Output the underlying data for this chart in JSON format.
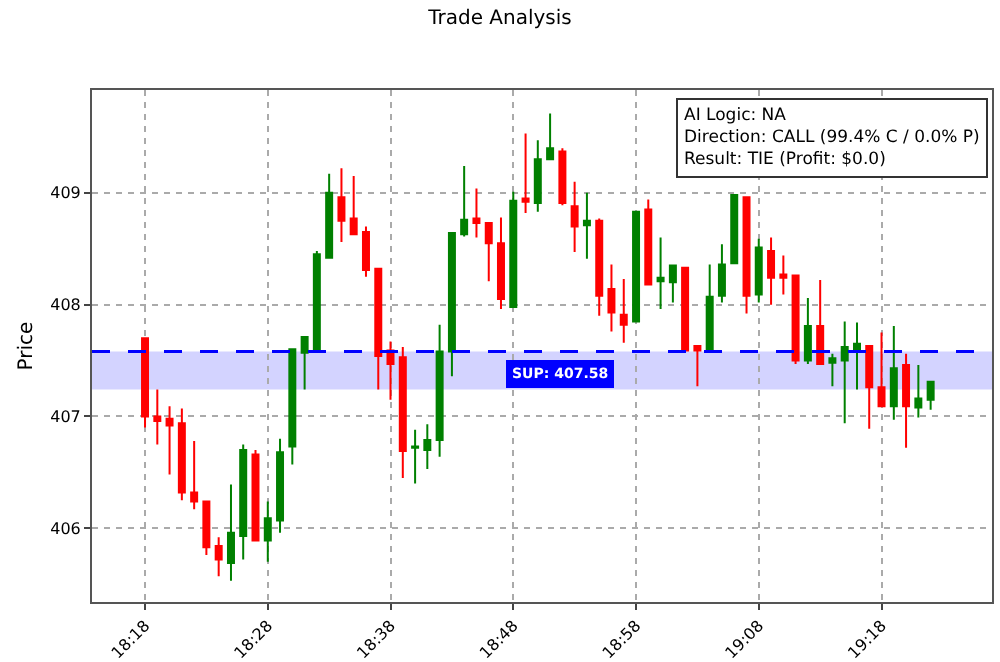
{
  "chart_data": {
    "type": "candlestick",
    "title": "Trade Analysis",
    "ylabel": "Price",
    "xlim": [
      18.228,
      19.45
    ],
    "xticks": [
      {
        "value": 18.3,
        "label": "18:18"
      },
      {
        "value": 18.4667,
        "label": "18:28"
      },
      {
        "value": 18.6333,
        "label": "18:38"
      },
      {
        "value": 18.8,
        "label": "18:48"
      },
      {
        "value": 18.9667,
        "label": "18:58"
      },
      {
        "value": 19.1333,
        "label": "19:08"
      },
      {
        "value": 19.3,
        "label": "19:18"
      }
    ],
    "ylim": [
      405.34,
      409.92
    ],
    "yticks": [
      406,
      407,
      408,
      409
    ],
    "grid": true,
    "series": [
      {
        "color": "#008000",
        "x": [
          18.4167,
          18.4333,
          18.4667,
          18.4833,
          18.5,
          18.5167,
          18.5333,
          18.55,
          18.6667,
          18.6833,
          18.7,
          18.7167,
          18.7333,
          18.8,
          18.8333,
          18.85,
          18.9,
          18.9667,
          19.0,
          19.0167,
          19.0667,
          19.0833,
          19.1,
          19.1333,
          19.2,
          19.2333,
          19.25,
          19.2667,
          19.3167,
          19.35,
          19.3667
        ],
        "ohlc": [
          [
            405.69,
            406.39,
            405.53,
            405.96
          ],
          [
            405.93,
            406.75,
            405.72,
            406.7
          ],
          [
            405.89,
            406.24,
            405.7,
            406.09
          ],
          [
            406.07,
            406.8,
            405.96,
            406.68
          ],
          [
            406.73,
            407.6,
            406.57,
            407.6
          ],
          [
            407.57,
            407.71,
            407.24,
            407.71
          ],
          [
            407.6,
            408.48,
            407.6,
            408.45
          ],
          [
            408.42,
            409.17,
            408.42,
            409.0
          ],
          [
            406.72,
            406.88,
            406.4,
            406.73
          ],
          [
            406.7,
            406.93,
            406.53,
            406.79
          ],
          [
            406.79,
            407.82,
            406.64,
            407.58
          ],
          [
            407.58,
            408.64,
            407.36,
            408.64
          ],
          [
            408.63,
            409.24,
            408.61,
            408.76
          ],
          [
            407.98,
            409.01,
            407.98,
            408.93
          ],
          [
            408.91,
            409.47,
            408.83,
            409.3
          ],
          [
            409.3,
            409.71,
            409.3,
            409.4
          ],
          [
            408.71,
            409.0,
            408.41,
            408.75
          ],
          [
            407.85,
            408.83,
            407.85,
            408.83
          ],
          [
            408.21,
            408.6,
            407.96,
            408.24
          ],
          [
            408.2,
            408.36,
            408.02,
            408.35
          ],
          [
            407.58,
            408.36,
            407.58,
            408.07
          ],
          [
            408.08,
            408.54,
            408.02,
            408.36
          ],
          [
            408.37,
            408.98,
            408.37,
            408.98
          ],
          [
            408.09,
            408.59,
            408.02,
            408.51
          ],
          [
            407.5,
            408.06,
            407.47,
            407.81
          ],
          [
            407.48,
            407.56,
            407.27,
            407.52
          ],
          [
            407.5,
            407.85,
            406.94,
            407.62
          ],
          [
            407.6,
            407.84,
            407.24,
            407.65
          ],
          [
            407.09,
            407.81,
            406.97,
            407.43
          ],
          [
            407.08,
            407.46,
            406.99,
            407.16
          ],
          [
            407.15,
            407.31,
            407.06,
            407.31
          ]
        ]
      },
      {
        "color": "#ff0000",
        "x": [
          18.3,
          18.3167,
          18.3333,
          18.35,
          18.3667,
          18.3833,
          18.4,
          18.45,
          18.5667,
          18.5833,
          18.6,
          18.6167,
          18.6333,
          18.65,
          18.75,
          18.7667,
          18.7833,
          18.8167,
          18.8667,
          18.8833,
          18.9167,
          18.9333,
          18.95,
          18.9833,
          19.0333,
          19.05,
          19.1167,
          19.15,
          19.1667,
          19.1833,
          19.2167,
          19.2833,
          19.3,
          19.3333
        ],
        "ohlc": [
          [
            407.7,
            407.7,
            406.9,
            407.0
          ],
          [
            407.0,
            407.24,
            406.75,
            406.96
          ],
          [
            406.98,
            407.09,
            406.48,
            406.92
          ],
          [
            406.94,
            407.07,
            406.25,
            406.32
          ],
          [
            406.32,
            406.78,
            406.17,
            406.24
          ],
          [
            406.24,
            406.24,
            405.76,
            405.83
          ],
          [
            405.84,
            405.92,
            405.57,
            405.72
          ],
          [
            406.66,
            406.7,
            405.89,
            405.89
          ],
          [
            408.96,
            409.22,
            408.56,
            408.75
          ],
          [
            408.77,
            409.15,
            408.63,
            408.63
          ],
          [
            408.65,
            408.7,
            408.25,
            408.31
          ],
          [
            408.32,
            408.32,
            407.24,
            407.54
          ],
          [
            407.59,
            407.67,
            407.15,
            407.47
          ],
          [
            407.53,
            407.62,
            406.45,
            406.69
          ],
          [
            408.77,
            409.04,
            408.6,
            408.73
          ],
          [
            408.73,
            408.73,
            408.21,
            408.55
          ],
          [
            408.55,
            408.78,
            407.96,
            408.05
          ],
          [
            408.95,
            409.53,
            408.82,
            408.92
          ],
          [
            409.37,
            409.4,
            408.89,
            408.91
          ],
          [
            408.88,
            409.1,
            408.47,
            408.7
          ],
          [
            408.75,
            408.77,
            407.9,
            408.08
          ],
          [
            408.14,
            408.36,
            407.76,
            407.93
          ],
          [
            407.91,
            408.23,
            407.66,
            407.82
          ],
          [
            408.85,
            408.94,
            408.18,
            408.18
          ],
          [
            408.33,
            408.33,
            407.59,
            407.59
          ],
          [
            407.63,
            407.63,
            407.27,
            407.59
          ],
          [
            408.96,
            408.96,
            407.92,
            408.08
          ],
          [
            408.48,
            408.6,
            408.0,
            408.24
          ],
          [
            408.27,
            408.44,
            408.09,
            408.24
          ],
          [
            408.26,
            408.26,
            407.47,
            407.5
          ],
          [
            407.81,
            408.22,
            407.47,
            407.47
          ],
          [
            407.63,
            407.63,
            406.89,
            407.26
          ],
          [
            407.26,
            407.75,
            407.09,
            407.09
          ],
          [
            407.46,
            407.56,
            406.72,
            407.09
          ]
        ]
      }
    ],
    "ref_lines": [
      {
        "axis": "y",
        "value": 407.58,
        "label": "SUP: 407.58",
        "color": "#0000ff",
        "line_style": "dashed"
      }
    ],
    "bands": [
      {
        "axis": "y",
        "from": 407.24,
        "to": 407.58,
        "color": "#c8c8ff"
      }
    ],
    "annotations": [
      "AI Logic: NA",
      "Direction: CALL (99.4% C / 0.0% P)",
      "Result: TIE (Profit: $0.0)"
    ]
  }
}
